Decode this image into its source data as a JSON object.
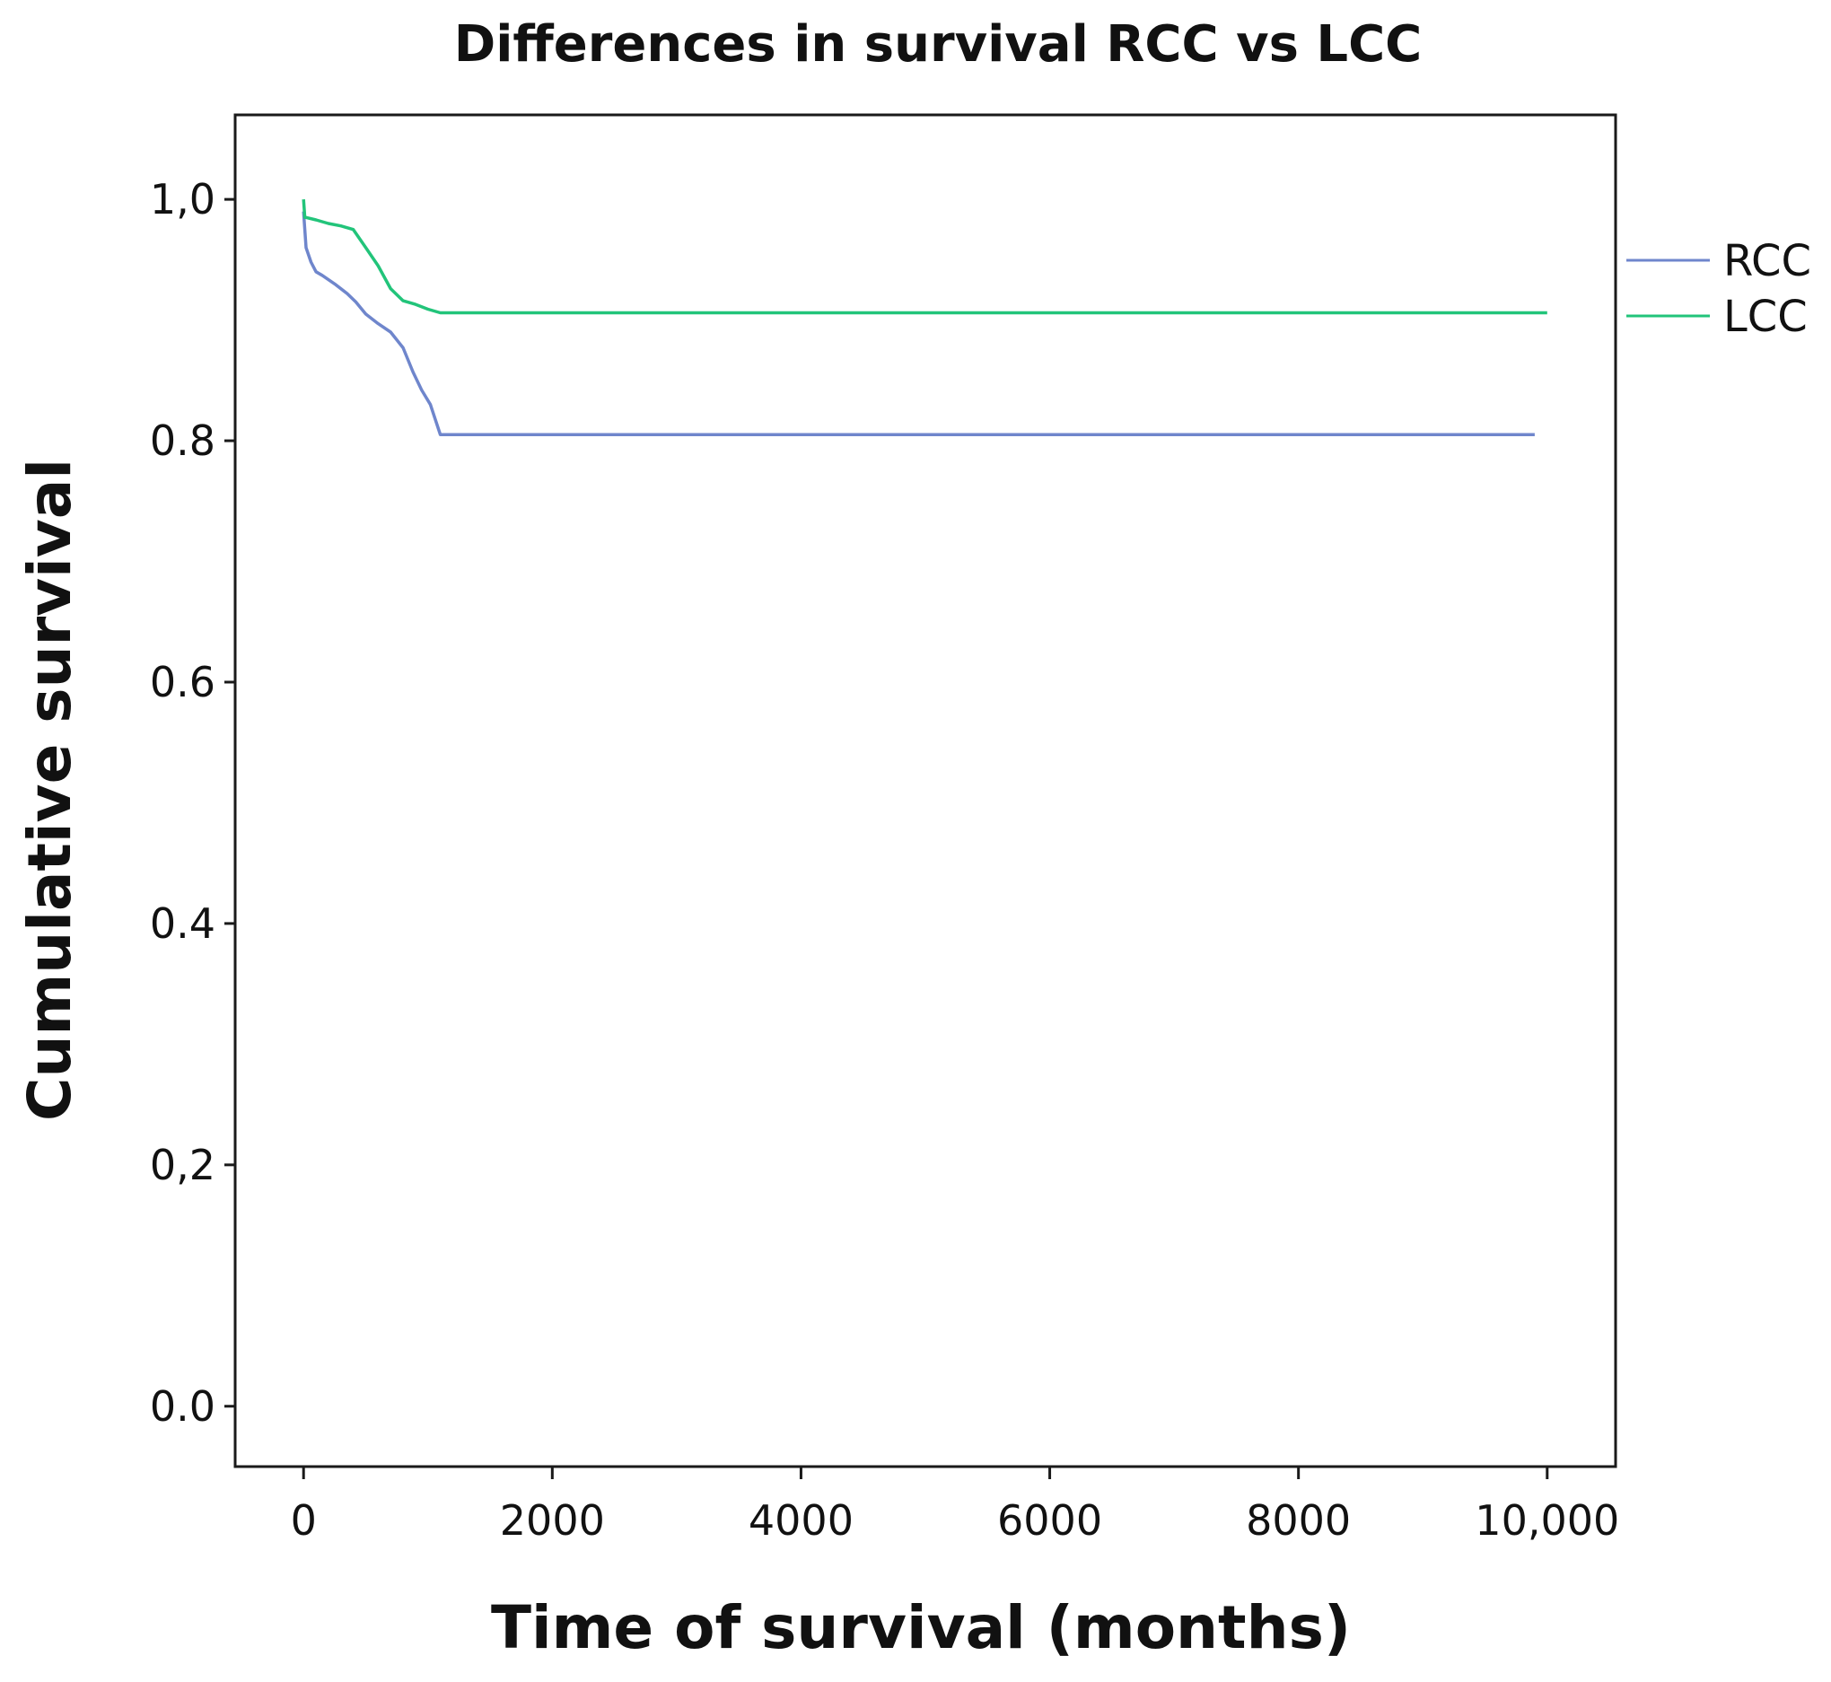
{
  "chart_data": {
    "type": "line",
    "title": "Differences in survival RCC vs LCC",
    "xlabel": "Time of survival (months)",
    "ylabel": "Cumulative survival",
    "xlim": [
      -550,
      10550
    ],
    "ylim": [
      -0.05,
      1.07
    ],
    "x_ticks": [
      {
        "value": 0,
        "label": "0"
      },
      {
        "value": 2000,
        "label": "2000"
      },
      {
        "value": 4000,
        "label": "4000"
      },
      {
        "value": 6000,
        "label": "6000"
      },
      {
        "value": 8000,
        "label": "8000"
      },
      {
        "value": 10000,
        "label": "10,000"
      }
    ],
    "y_ticks": [
      {
        "value": 0.0,
        "label": "0.0"
      },
      {
        "value": 0.2,
        "label": "0,2"
      },
      {
        "value": 0.4,
        "label": "0.4"
      },
      {
        "value": 0.6,
        "label": "0.6"
      },
      {
        "value": 0.8,
        "label": "0.8"
      },
      {
        "value": 1.0,
        "label": "1,0"
      }
    ],
    "legend_position": "right",
    "series": [
      {
        "name": "RCC",
        "color": "#6f86cc",
        "x": [
          0,
          20,
          60,
          100,
          150,
          250,
          350,
          420,
          500,
          600,
          700,
          800,
          880,
          950,
          1020,
          1100,
          9900
        ],
        "y": [
          0.99,
          0.96,
          0.948,
          0.94,
          0.937,
          0.93,
          0.922,
          0.915,
          0.905,
          0.897,
          0.89,
          0.877,
          0.857,
          0.842,
          0.83,
          0.805,
          0.805
        ]
      },
      {
        "name": "LCC",
        "color": "#22c47a",
        "x": [
          0,
          10,
          20,
          100,
          200,
          300,
          400,
          500,
          600,
          700,
          800,
          900,
          1000,
          1100,
          10000
        ],
        "y": [
          1.0,
          0.985,
          0.985,
          0.983,
          0.98,
          0.978,
          0.975,
          0.96,
          0.945,
          0.926,
          0.916,
          0.913,
          0.909,
          0.906,
          0.906
        ]
      }
    ]
  }
}
